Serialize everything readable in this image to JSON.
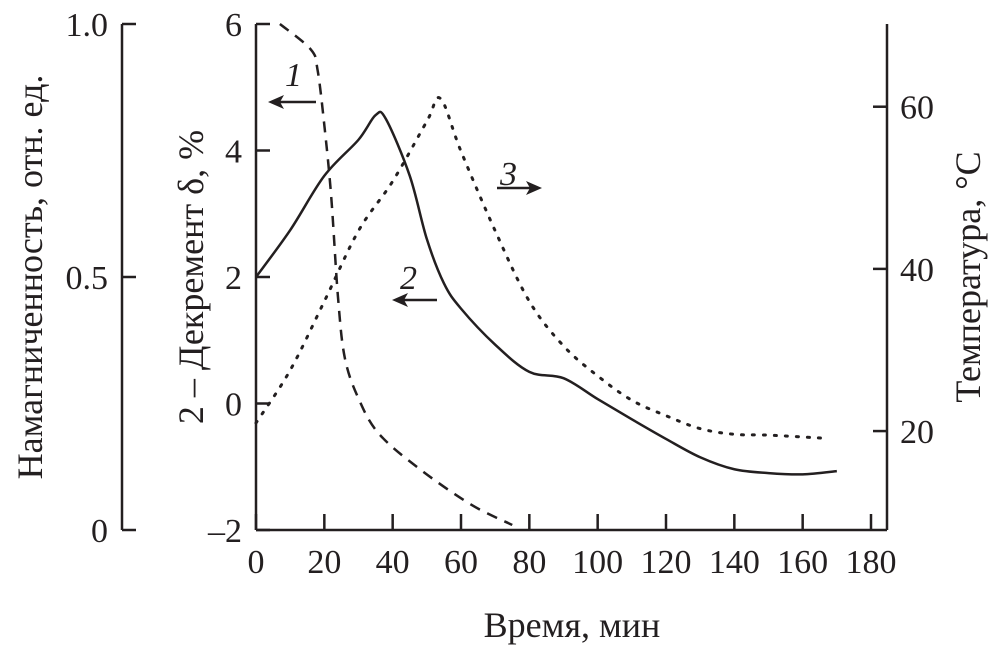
{
  "chart_data": {
    "type": "line",
    "xlabel": "Время, мин",
    "xlim": [
      0,
      180
    ],
    "xticks": [
      "0",
      "20",
      "40",
      "60",
      "80",
      "100",
      "120",
      "140",
      "160",
      "180"
    ],
    "axes": {
      "magnetization": {
        "label": "Намагниченность, отн. ед.",
        "ylim": [
          0,
          1.0
        ],
        "ticks": [
          "1.0",
          "0.5",
          "0"
        ]
      },
      "decrement": {
        "label": "2 – Декремент δ, %",
        "ylim": [
          -2,
          6
        ],
        "ticks": [
          "6",
          "4",
          "2",
          "0",
          "–2"
        ]
      },
      "temperature": {
        "label": "Температура, °C",
        "ylim": [
          7.8,
          70.2
        ],
        "ticks": [
          "60",
          "40",
          "20"
        ]
      }
    },
    "series": [
      {
        "name": "1",
        "axis": "magnetization",
        "style": "dashed",
        "arrow": "left",
        "x": [
          7,
          16,
          18,
          20,
          22,
          24,
          26,
          30,
          36,
          48,
          63,
          75
        ],
        "y": [
          1.0,
          0.95,
          0.91,
          0.8,
          0.66,
          0.46,
          0.34,
          0.26,
          0.19,
          0.12,
          0.05,
          0.01
        ]
      },
      {
        "name": "2",
        "axis": "decrement",
        "style": "solid",
        "arrow": "left",
        "x": [
          0,
          10,
          20,
          30,
          35,
          38,
          45,
          50,
          55,
          60,
          70,
          80,
          90,
          100,
          110,
          120,
          130,
          140,
          150,
          160,
          170
        ],
        "y": [
          2.0,
          2.74,
          3.6,
          4.17,
          4.56,
          4.5,
          3.6,
          2.6,
          1.9,
          1.5,
          0.93,
          0.5,
          0.4,
          0.07,
          -0.25,
          -0.56,
          -0.85,
          -1.04,
          -1.1,
          -1.12,
          -1.07
        ]
      },
      {
        "name": "3",
        "axis": "temperature",
        "style": "dotted",
        "arrow": "right",
        "x": [
          0,
          10,
          20,
          30,
          40,
          50,
          54,
          60,
          70,
          80,
          90,
          100,
          110,
          120,
          130,
          140,
          150,
          167
        ],
        "y": [
          21,
          27.5,
          36,
          44.7,
          50.8,
          58.2,
          61,
          54.5,
          44.7,
          36,
          30.5,
          26.8,
          23.8,
          21.9,
          20.3,
          19.6,
          19.5,
          19.1
        ]
      }
    ]
  }
}
